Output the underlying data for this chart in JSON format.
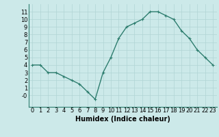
{
  "x": [
    0,
    1,
    2,
    3,
    4,
    5,
    6,
    7,
    8,
    9,
    10,
    11,
    12,
    13,
    14,
    15,
    16,
    17,
    18,
    19,
    20,
    21,
    22,
    23
  ],
  "y": [
    4.0,
    4.0,
    3.0,
    3.0,
    2.5,
    2.0,
    1.5,
    0.5,
    -0.5,
    3.0,
    5.0,
    7.5,
    9.0,
    9.5,
    10.0,
    11.0,
    11.0,
    10.5,
    10.0,
    8.5,
    7.5,
    6.0,
    5.0,
    4.0
  ],
  "line_color": "#2d7d6e",
  "marker": "+",
  "marker_size": 3,
  "bg_color": "#cce9e9",
  "grid_color": "#b0d4d4",
  "xlabel": "Humidex (Indice chaleur)",
  "xlabel_fontsize": 7,
  "tick_fontsize": 6,
  "xlim": [
    -0.5,
    23.5
  ],
  "ylim": [
    -1.5,
    12.0
  ],
  "yticks": [
    0,
    1,
    2,
    3,
    4,
    5,
    6,
    7,
    8,
    9,
    10,
    11
  ],
  "ytick_labels": [
    "-0",
    "1",
    "2",
    "3",
    "4",
    "5",
    "6",
    "7",
    "8",
    "9",
    "10",
    "11"
  ],
  "xticks": [
    0,
    1,
    2,
    3,
    4,
    5,
    6,
    7,
    8,
    9,
    10,
    11,
    12,
    13,
    14,
    15,
    16,
    17,
    18,
    19,
    20,
    21,
    22,
    23
  ]
}
